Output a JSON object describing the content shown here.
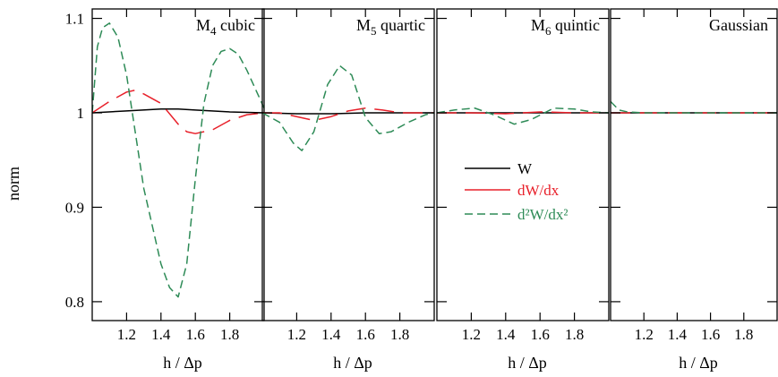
{
  "chart_data": {
    "type": "line",
    "ylabel": "norm",
    "ylim": [
      0.78,
      1.11
    ],
    "yticks": [
      0.8,
      0.9,
      1,
      1.1
    ],
    "ytick_labels": [
      "0.8",
      "0.9",
      "1",
      "1.1"
    ],
    "xlim": [
      1.0,
      2.0
    ],
    "grid": false,
    "legend": {
      "placement": "center (second panel, lower right)",
      "entries": [
        {
          "label": "W",
          "color": "#000000",
          "dash": "solid"
        },
        {
          "label": "dW/dx",
          "color": "#e8202a",
          "dash": "longdash"
        },
        {
          "label": "d²W/dx²",
          "color": "#2e8b57",
          "dash": "dashed"
        }
      ]
    },
    "panels": [
      {
        "title_main": "M",
        "title_sub": "4",
        "title_rest": " cubic",
        "xlabel": "h / Δp",
        "xticks": [
          1.2,
          1.4,
          1.6,
          1.8
        ],
        "xtick_labels": [
          "1.2",
          "1.4",
          "1.6",
          "1.8"
        ],
        "series": [
          {
            "legend_index": 0,
            "x": [
              1.0,
              1.2,
              1.4,
              1.5,
              1.6,
              1.8,
              2.0
            ],
            "y": [
              1.0,
              1.002,
              1.004,
              1.004,
              1.003,
              1.001,
              1.0
            ]
          },
          {
            "legend_index": 1,
            "x": [
              1.0,
              1.1,
              1.2,
              1.25,
              1.3,
              1.4,
              1.5,
              1.55,
              1.6,
              1.7,
              1.8,
              1.9,
              2.0
            ],
            "y": [
              1.0,
              1.012,
              1.022,
              1.024,
              1.02,
              1.01,
              0.988,
              0.98,
              0.978,
              0.982,
              0.992,
              0.998,
              1.0
            ]
          },
          {
            "legend_index": 2,
            "x": [
              1.0,
              1.03,
              1.06,
              1.1,
              1.15,
              1.2,
              1.3,
              1.4,
              1.45,
              1.5,
              1.55,
              1.6,
              1.65,
              1.7,
              1.75,
              1.8,
              1.85,
              1.9,
              1.95,
              2.0
            ],
            "y": [
              1.0,
              1.07,
              1.09,
              1.095,
              1.08,
              1.04,
              0.92,
              0.84,
              0.815,
              0.805,
              0.84,
              0.93,
              1.01,
              1.05,
              1.065,
              1.068,
              1.062,
              1.045,
              1.025,
              1.005
            ]
          }
        ]
      },
      {
        "title_main": "M",
        "title_sub": "5",
        "title_rest": " quartic",
        "xlabel": "h / Δp",
        "xticks": [
          1.2,
          1.4,
          1.6,
          1.8
        ],
        "xtick_labels": [
          "1.2",
          "1.4",
          "1.6",
          "1.8"
        ],
        "series": [
          {
            "legend_index": 0,
            "x": [
              1.0,
              1.2,
              1.4,
              1.6,
              1.8,
              2.0
            ],
            "y": [
              1.0,
              0.999,
              0.999,
              1.0,
              1.0,
              1.0
            ]
          },
          {
            "legend_index": 1,
            "x": [
              1.0,
              1.1,
              1.2,
              1.3,
              1.4,
              1.5,
              1.6,
              1.7,
              1.8,
              2.0
            ],
            "y": [
              1.0,
              1.0,
              0.996,
              0.992,
              0.996,
              1.002,
              1.005,
              1.003,
              1.0,
              1.0
            ]
          },
          {
            "legend_index": 2,
            "x": [
              1.0,
              1.1,
              1.18,
              1.23,
              1.3,
              1.38,
              1.45,
              1.52,
              1.6,
              1.68,
              1.75,
              1.85,
              1.95,
              2.0
            ],
            "y": [
              1.0,
              0.99,
              0.968,
              0.96,
              0.98,
              1.03,
              1.05,
              1.04,
              0.995,
              0.978,
              0.98,
              0.99,
              0.998,
              1.0
            ]
          }
        ]
      },
      {
        "title_main": "M",
        "title_sub": "6",
        "title_rest": " quintic",
        "xlabel": "h / Δp",
        "xticks": [
          1.2,
          1.4,
          1.6,
          1.8
        ],
        "xtick_labels": [
          "1.2",
          "1.4",
          "1.6",
          "1.8"
        ],
        "series": [
          {
            "legend_index": 0,
            "x": [
              1.0,
              1.5,
              2.0
            ],
            "y": [
              1.0,
              1.0,
              1.0
            ]
          },
          {
            "legend_index": 1,
            "x": [
              1.0,
              1.2,
              1.4,
              1.6,
              1.8,
              2.0
            ],
            "y": [
              1.0,
              1.0,
              0.999,
              1.001,
              1.0,
              1.0
            ]
          },
          {
            "legend_index": 2,
            "x": [
              1.0,
              1.1,
              1.22,
              1.33,
              1.45,
              1.55,
              1.68,
              1.8,
              1.9,
              2.0
            ],
            "y": [
              1.0,
              1.003,
              1.005,
              0.998,
              0.988,
              0.993,
              1.005,
              1.004,
              1.001,
              1.0
            ]
          }
        ]
      },
      {
        "title_main": "Gaussian",
        "title_sub": "",
        "title_rest": "",
        "xlabel": "h / Δp",
        "xticks": [
          1.2,
          1.4,
          1.6,
          1.8
        ],
        "xtick_labels": [
          "1.2",
          "1.4",
          "1.6",
          "1.8"
        ],
        "series": [
          {
            "legend_index": 0,
            "x": [
              1.0,
              2.0
            ],
            "y": [
              1.0,
              1.0
            ]
          },
          {
            "legend_index": 1,
            "x": [
              1.0,
              2.0
            ],
            "y": [
              1.0,
              1.0
            ]
          },
          {
            "legend_index": 2,
            "x": [
              1.0,
              1.05,
              1.1,
              1.2,
              1.3,
              2.0
            ],
            "y": [
              1.012,
              1.003,
              1.001,
              1.0,
              1.0,
              1.0
            ]
          }
        ]
      }
    ]
  }
}
